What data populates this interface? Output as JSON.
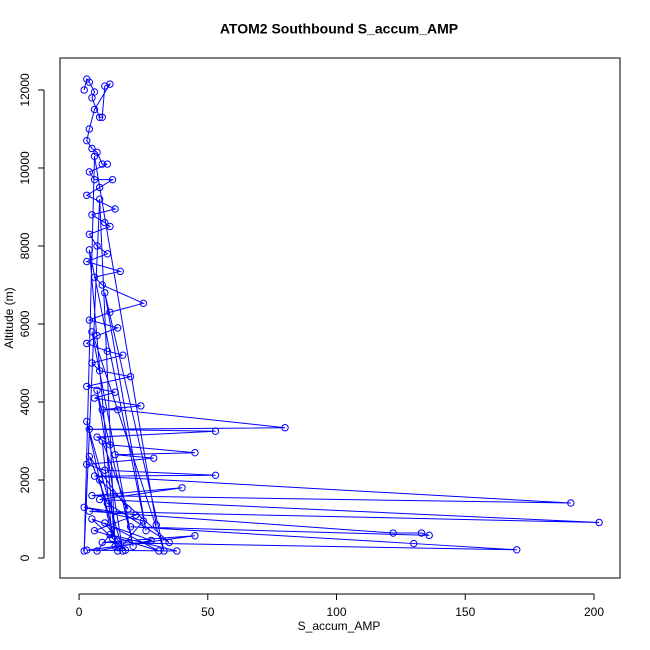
{
  "chart_data": {
    "type": "scatter-line",
    "title": "ATOM2 Southbound S_accum_AMP",
    "x_label": "S_accum_AMP",
    "y_label": "Altitude (m)",
    "color": "#0000ff",
    "xlim": [
      -7.4,
      210.1
    ],
    "ylim": [
      -513,
      12820
    ],
    "xticks": [
      0,
      50,
      100,
      150,
      200
    ],
    "yticks": [
      0,
      2000,
      4000,
      6000,
      8000,
      10000,
      12000
    ],
    "x": [
      2,
      3,
      4,
      6,
      5,
      8,
      9,
      10,
      12,
      6,
      4,
      3,
      5,
      7,
      9,
      11,
      4,
      6,
      13,
      8,
      3,
      14,
      5,
      10,
      12,
      4,
      7,
      11,
      3,
      16,
      6,
      9,
      25,
      12,
      4,
      15,
      7,
      3,
      11,
      17,
      5,
      8,
      20,
      3,
      14,
      6,
      24,
      9,
      15,
      80,
      4,
      53,
      7,
      12,
      45,
      14,
      29,
      3,
      10,
      53,
      6,
      191,
      5,
      40,
      8,
      202,
      4,
      122,
      133,
      136,
      20,
      130,
      170,
      9,
      45,
      3,
      38,
      12,
      7,
      28,
      5,
      18,
      10,
      31,
      6,
      22,
      2,
      25,
      15,
      8,
      35,
      11,
      4,
      19,
      9,
      13,
      3,
      17,
      7,
      21,
      5,
      33,
      10,
      26,
      4,
      14,
      8,
      2,
      6,
      30
    ],
    "values": [
      12000,
      12280,
      12200,
      11950,
      11800,
      11300,
      11300,
      12100,
      12150,
      11500,
      11000,
      10700,
      10500,
      10400,
      10100,
      10100,
      9900,
      9700,
      9700,
      9500,
      9300,
      8950,
      8800,
      8600,
      8500,
      8300,
      8000,
      7800,
      7600,
      7350,
      7200,
      7000,
      6530,
      6300,
      6100,
      5900,
      5700,
      5500,
      5300,
      5200,
      5000,
      4800,
      4650,
      4400,
      4250,
      4100,
      3900,
      3800,
      3800,
      3340,
      3300,
      3250,
      3100,
      2900,
      2700,
      2650,
      2560,
      2400,
      2250,
      2120,
      2100,
      1410,
      1600,
      1800,
      1500,
      910,
      1200,
      640,
      640,
      580,
      800,
      370,
      210,
      400,
      570,
      200,
      180,
      600,
      180,
      450,
      1000,
      200,
      900,
      180,
      700,
      1100,
      1300,
      950,
      180,
      2000,
      400,
      1400,
      2600,
      1250,
      3000,
      500,
      3500,
      180,
      4300,
      300,
      5800,
      180,
      6800,
      700,
      7900,
      300,
      9200,
      180,
      10300,
      850
    ]
  }
}
